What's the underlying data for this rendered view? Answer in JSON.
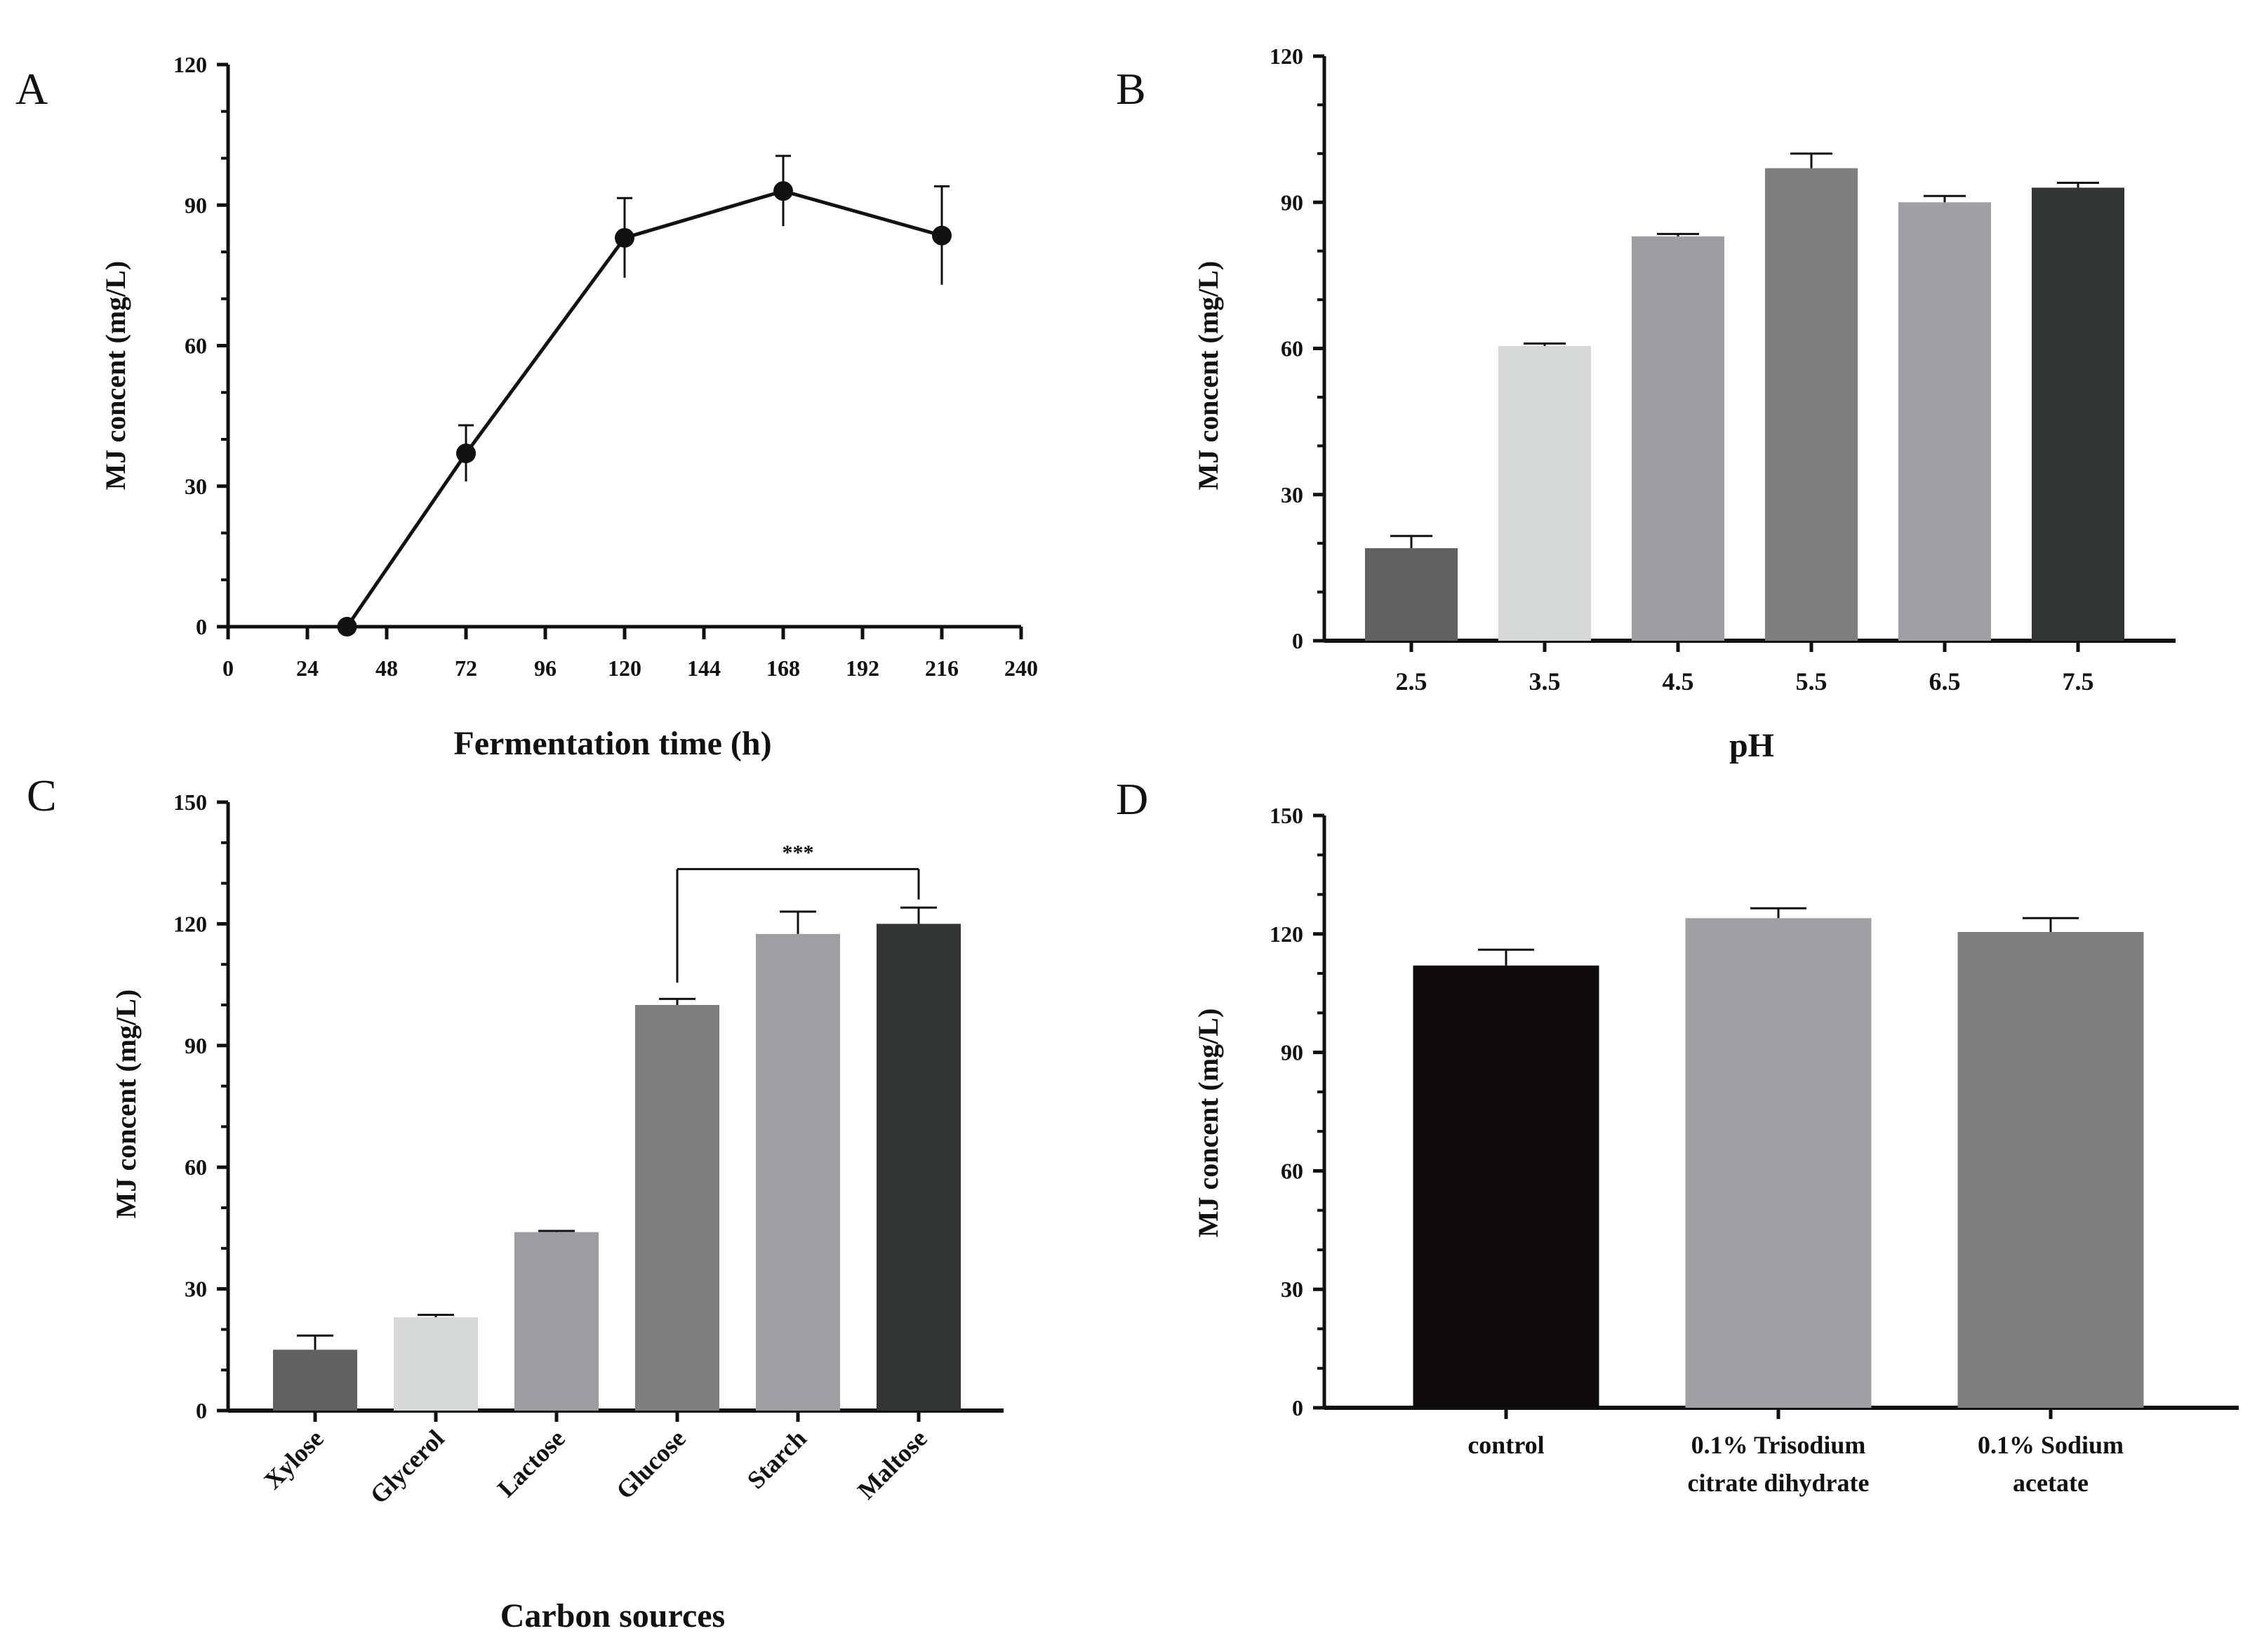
{
  "chart_data": [
    {
      "panel": "A",
      "type": "line",
      "xlabel": "Fermentation time (h)",
      "ylabel": "MJ concent (mg/L)",
      "xlim": [
        0,
        240
      ],
      "ylim": [
        0,
        120
      ],
      "xticks": [
        "0",
        "24",
        "48",
        "72",
        "96",
        "120",
        "144",
        "168",
        "192",
        "216",
        "240"
      ],
      "yticks": [
        "0",
        "30",
        "60",
        "90",
        "120"
      ],
      "x": [
        36,
        72,
        120,
        168,
        216
      ],
      "values": [
        0,
        37,
        83,
        93,
        83.5
      ],
      "errors": [
        0,
        6,
        8.5,
        7.5,
        10.5
      ]
    },
    {
      "panel": "B",
      "type": "bar",
      "xlabel": "pH",
      "ylabel": "MJ concent (mg/L)",
      "ylim": [
        0,
        120
      ],
      "yticks": [
        "0",
        "30",
        "60",
        "90",
        "120"
      ],
      "categories": [
        "2.5",
        "3.5",
        "4.5",
        "5.5",
        "6.5",
        "7.5"
      ],
      "values": [
        19,
        60.5,
        83,
        97,
        90,
        93
      ],
      "errors": [
        2.5,
        0.5,
        0.5,
        3,
        1.3,
        1
      ],
      "colors": [
        "#606060",
        "#d7d8d8",
        "#9e9ea2",
        "#7f7f7f",
        "#a0a0a4",
        "#333535"
      ]
    },
    {
      "panel": "C",
      "type": "bar",
      "xlabel": "Carbon sources",
      "ylabel": "MJ concent (mg/L)",
      "ylim": [
        0,
        150
      ],
      "yticks": [
        "0",
        "30",
        "60",
        "90",
        "120",
        "150"
      ],
      "categories": [
        "Xylose",
        "Glycerol",
        "Lactose",
        "Glucose",
        "Starch",
        "Maltose"
      ],
      "values": [
        15,
        23,
        44,
        100,
        117.5,
        120
      ],
      "errors": [
        3.5,
        0.6,
        0.3,
        1.5,
        5.5,
        4
      ],
      "colors": [
        "#606060",
        "#d7d8d8",
        "#9e9ea2",
        "#7f7f7f",
        "#a0a0a4",
        "#333535"
      ],
      "annotation": {
        "text": "***",
        "from": "Glucose",
        "to": "Maltose"
      }
    },
    {
      "panel": "D",
      "type": "bar",
      "ylabel": "MJ concent (mg/L)",
      "ylim": [
        0,
        150
      ],
      "yticks": [
        "0",
        "30",
        "60",
        "90",
        "120",
        "150"
      ],
      "categories": [
        "control",
        "0.1%   Trisodium citrate dihydrate",
        "0.1% Sodium acetate"
      ],
      "category_lines": [
        [
          "control"
        ],
        [
          "0.1%   Trisodium",
          "citrate dihydrate"
        ],
        [
          "0.1% Sodium",
          "acetate"
        ]
      ],
      "values": [
        112,
        124,
        120.5
      ],
      "errors": [
        4,
        2.5,
        3.5
      ],
      "colors": [
        "#0d0b0b",
        "#a0a0a4",
        "#7f7f7f"
      ]
    }
  ]
}
